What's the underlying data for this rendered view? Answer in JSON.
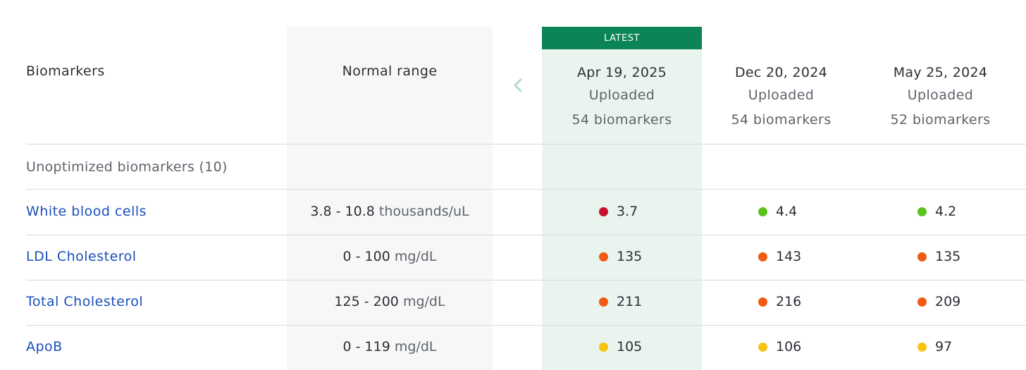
{
  "table": {
    "header": {
      "biomarkers_label": "Biomarkers",
      "range_label": "Normal range",
      "latest_badge": "LATEST",
      "prev_icon": "chevron-left-icon"
    },
    "dates": [
      {
        "date": "Apr 19, 2025",
        "status": "Uploaded",
        "count": "54 biomarkers"
      },
      {
        "date": "Dec 20, 2024",
        "status": "Uploaded",
        "count": "54 biomarkers"
      },
      {
        "date": "May 25, 2024",
        "status": "Uploaded",
        "count": "52 biomarkers"
      }
    ],
    "section_label": "Unoptimized biomarkers (10)",
    "rows": [
      {
        "name": "White blood cells",
        "range": "3.8 - 10.8",
        "unit": "thousands/uL",
        "values": [
          {
            "value": "3.7",
            "color": "#c8102e"
          },
          {
            "value": "4.4",
            "color": "#5cc21e"
          },
          {
            "value": "4.2",
            "color": "#5cc21e"
          }
        ]
      },
      {
        "name": "LDL Cholesterol",
        "range": "0 - 100",
        "unit": "mg/dL",
        "values": [
          {
            "value": "135",
            "color": "#f15a12"
          },
          {
            "value": "143",
            "color": "#f15a12"
          },
          {
            "value": "135",
            "color": "#f15a12"
          }
        ]
      },
      {
        "name": "Total Cholesterol",
        "range": "125 - 200",
        "unit": "mg/dL",
        "values": [
          {
            "value": "211",
            "color": "#f15a12"
          },
          {
            "value": "216",
            "color": "#f15a12"
          },
          {
            "value": "209",
            "color": "#f15a12"
          }
        ]
      },
      {
        "name": "ApoB",
        "range": "0 - 119",
        "unit": "mg/dL",
        "values": [
          {
            "value": "105",
            "color": "#f7c412"
          },
          {
            "value": "106",
            "color": "#f7c412"
          },
          {
            "value": "97",
            "color": "#f7c412"
          }
        ]
      }
    ]
  }
}
